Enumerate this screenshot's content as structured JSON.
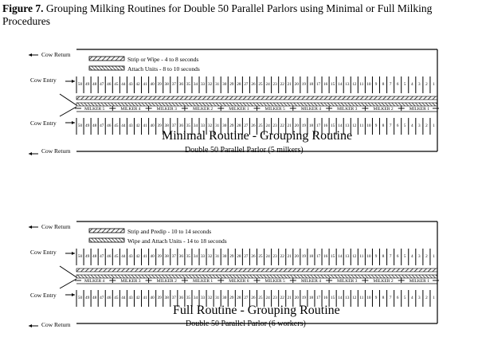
{
  "caption": {
    "figure_label": "Figure 7.",
    "text": "Grouping Milking Routines for Double 50 Parallel Parlors using Minimal or Full Milking Procedures"
  },
  "stall_numbers": [
    "50",
    "49",
    "48",
    "47",
    "46",
    "45",
    "44",
    "43",
    "42",
    "41",
    "40",
    "39",
    "38",
    "37",
    "36",
    "35",
    "34",
    "33",
    "32",
    "31",
    "30",
    "29",
    "28",
    "27",
    "26",
    "25",
    "24",
    "23",
    "22",
    "21",
    "20",
    "19",
    "18",
    "17",
    "16",
    "15",
    "14",
    "13",
    "12",
    "11",
    "10",
    "9",
    "8",
    "7",
    "6",
    "5",
    "4",
    "3",
    "2",
    "1"
  ],
  "diagrams": [
    {
      "cow_return_label": "Cow Return",
      "cow_entry_label": "Cow Entry",
      "legend": [
        "Strip or Wipe - 4 to 8 seconds",
        "Attach Units - 8 to 10 seconds"
      ],
      "milkers": [
        "MILKER 5",
        "MILKER 4",
        "MILKER 3",
        "MILKER 2",
        "MILKER 1",
        "MILKER 5",
        "MILKER 4",
        "MILKER 3",
        "MILKER 2",
        "MILKER 1"
      ],
      "title": "Minimal Routine - Grouping Routine",
      "subtitle": "Double 50 Parallel Parlor (5 milkers)"
    },
    {
      "cow_return_label": "Cow Return",
      "cow_entry_label": "Cow Entry",
      "legend": [
        "Strip and Predip - 10 to 14 seconds",
        "Wipe and Attach Units - 14 to 18 seconds"
      ],
      "milkers": [
        "MILKER 4",
        "MILKER 3",
        "MILKER 2",
        "MILKER 1",
        "MILKER 6",
        "MILKER 5",
        "MILKER 4",
        "MILKER 3",
        "MILKER 2",
        "MILKER 1"
      ],
      "title": "Full Routine - Grouping Routine",
      "subtitle": "Double 50 Parallel Parlor (6 workers)"
    }
  ]
}
